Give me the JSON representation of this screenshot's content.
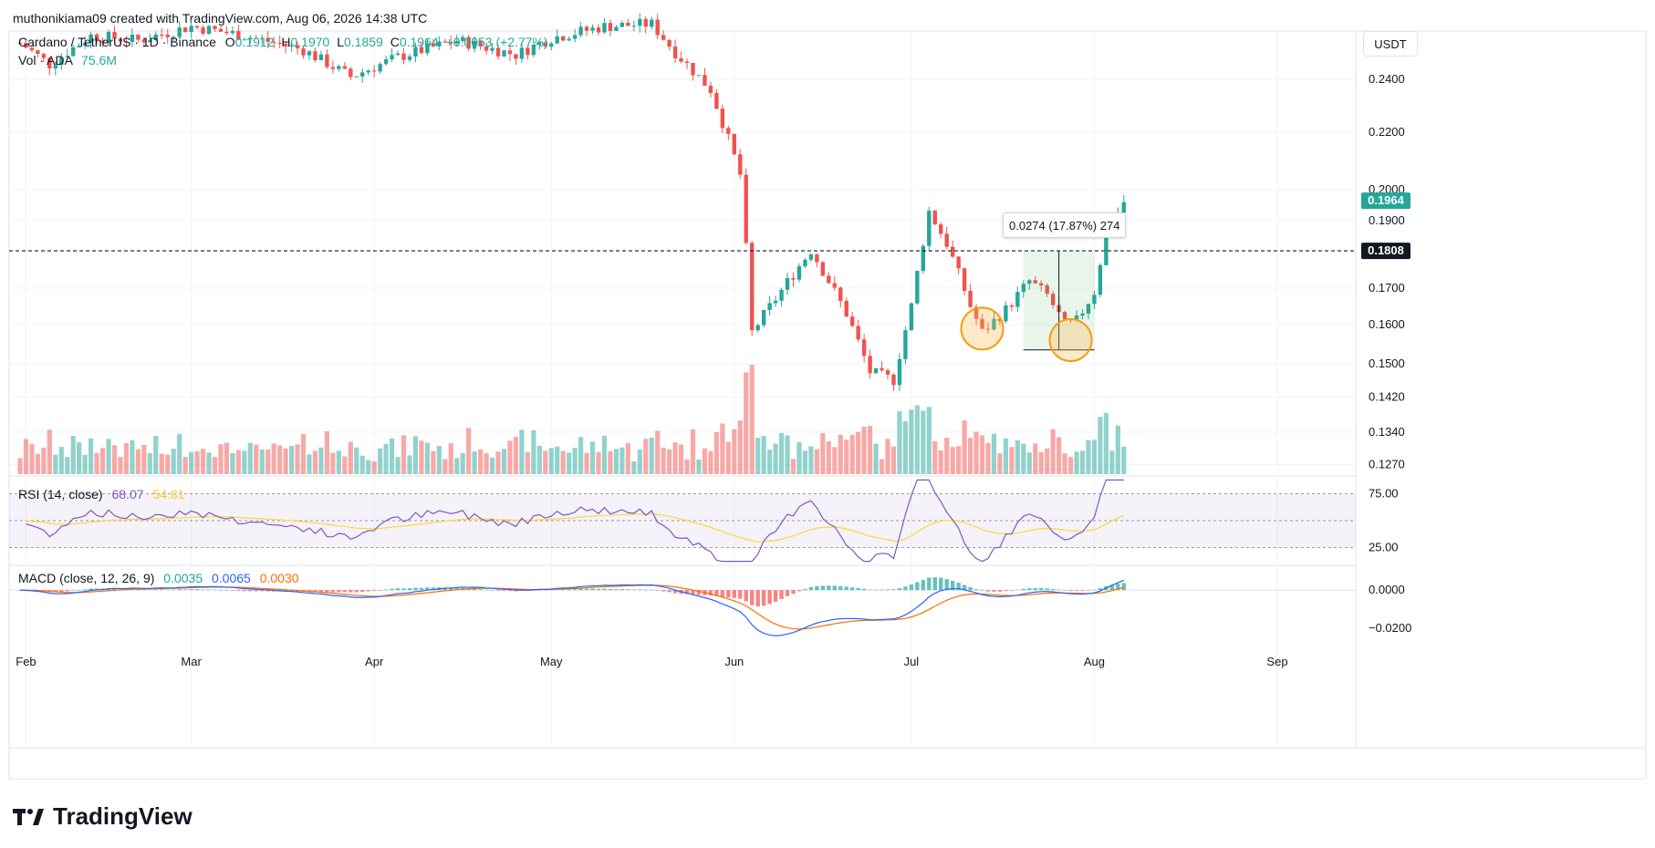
{
  "header": {
    "credit": "muthonikiama09 created with TradingView.com, Aug 06, 2026 14:38 UTC"
  },
  "legend": {
    "symbol": "Cardano / TetherUS · 1D · Binance",
    "o_label": "O",
    "o_value": "0.1912",
    "h_label": "H",
    "h_value": "0.1970",
    "l_label": "L",
    "l_value": "0.1859",
    "c_label": "C",
    "c_value": "0.1964",
    "change": "+0.0053 (+2.77%)",
    "vol_label": "Vol · ADA",
    "vol_value": "75.6M"
  },
  "price_axis": {
    "currency": "USDT",
    "ticks": [
      "0.2400",
      "0.2200",
      "0.2000",
      "0.1900",
      "0.1700",
      "0.1600",
      "0.1500",
      "0.1420",
      "0.1340",
      "0.1270"
    ],
    "last_price": "0.1964",
    "line_price": "0.1808"
  },
  "measure": {
    "label": "0.0274 (17.87%) 274"
  },
  "rsi": {
    "title": "RSI (14, close)",
    "value": "68.07",
    "ma_value": "54.81",
    "ticks": [
      "75.00",
      "25.00"
    ]
  },
  "macd": {
    "title": "MACD (close, 12, 26, 9)",
    "hist_value": "0.0035",
    "macd_value": "0.0065",
    "signal_value": "0.0030",
    "ticks": [
      "0.0000",
      "−0.0200"
    ]
  },
  "time_axis": [
    "Feb",
    "Mar",
    "Apr",
    "May",
    "Jun",
    "Jul",
    "Aug",
    "Sep"
  ],
  "colors": {
    "up": "#26a69a",
    "down": "#ef5350",
    "rsi": "#7e57c2",
    "rsi_ma": "#fdd835",
    "macd": "#2962ff",
    "signal": "#ff6d00"
  },
  "brand": {
    "name": "TradingView"
  },
  "chart_data": {
    "type": "candlestick",
    "title": "Cardano / TetherUS · 1D · Binance",
    "y_scale": "log",
    "ylim": [
      0.125,
      0.26
    ],
    "x": [
      "Feb",
      "Mar",
      "Apr",
      "May",
      "Jun",
      "Jul",
      "Aug",
      "Sep"
    ],
    "price_path": [
      [
        "2026-01-31",
        0.255
      ],
      [
        "2026-02-05",
        0.246
      ],
      [
        "2026-02-12",
        0.258
      ],
      [
        "2026-02-20",
        0.256
      ],
      [
        "2026-03-01",
        0.262
      ],
      [
        "2026-03-10",
        0.258
      ],
      [
        "2026-03-20",
        0.252
      ],
      [
        "2026-03-28",
        0.241
      ],
      [
        "2026-04-05",
        0.249
      ],
      [
        "2026-04-15",
        0.256
      ],
      [
        "2026-04-25",
        0.25
      ],
      [
        "2026-05-01",
        0.257
      ],
      [
        "2026-05-10",
        0.262
      ],
      [
        "2026-05-18",
        0.263
      ],
      [
        "2026-05-22",
        0.251
      ],
      [
        "2026-05-28",
        0.236
      ],
      [
        "2026-06-02",
        0.205
      ],
      [
        "2026-06-04",
        0.158
      ],
      [
        "2026-06-08",
        0.167
      ],
      [
        "2026-06-14",
        0.181
      ],
      [
        "2026-06-20",
        0.163
      ],
      [
        "2026-06-24",
        0.148
      ],
      [
        "2026-06-28",
        0.146
      ],
      [
        "2026-07-01",
        0.165
      ],
      [
        "2026-07-04",
        0.193
      ],
      [
        "2026-07-07",
        0.183
      ],
      [
        "2026-07-11",
        0.165
      ],
      [
        "2026-07-13",
        0.158
      ],
      [
        "2026-07-17",
        0.164
      ],
      [
        "2026-07-21",
        0.172
      ],
      [
        "2026-07-24",
        0.168
      ],
      [
        "2026-07-27",
        0.16
      ],
      [
        "2026-07-29",
        0.161
      ],
      [
        "2026-08-01",
        0.169
      ],
      [
        "2026-08-03",
        0.186
      ],
      [
        "2026-08-06",
        0.196
      ]
    ],
    "last_close": 0.1964,
    "horizontal_line": 0.1808,
    "rsi": {
      "value": 68.07,
      "ma": 54.81,
      "levels": [
        75,
        50,
        25
      ]
    },
    "macd": {
      "histogram": 0.0035,
      "macd": 0.0065,
      "signal": 0.003,
      "ylim": [
        -0.03,
        0.012
      ]
    }
  }
}
